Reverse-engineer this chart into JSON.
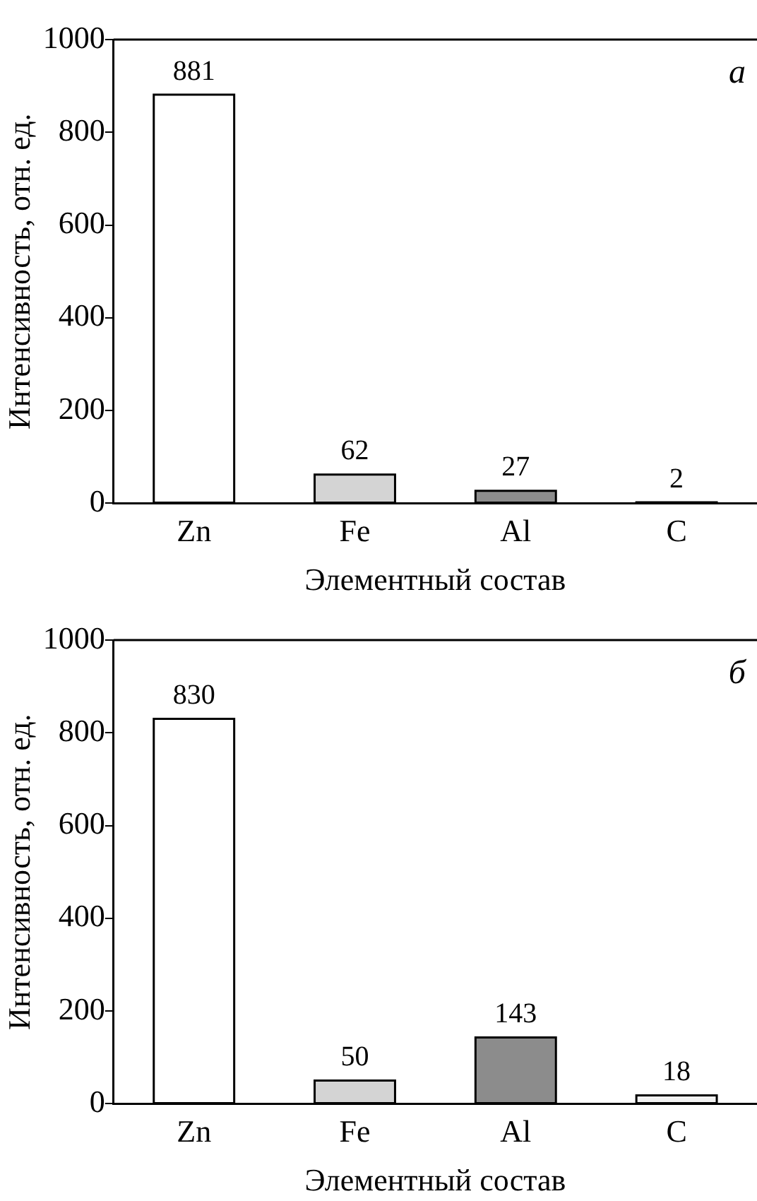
{
  "chart_data": [
    {
      "type": "bar",
      "categories": [
        "Zn",
        "Fe",
        "Al",
        "C"
      ],
      "values": [
        881,
        62,
        27,
        2
      ],
      "colors": [
        "#ffffff",
        "#d4d4d4",
        "#8c8c8c",
        "#f2f2f2"
      ],
      "xlabel": "Элементный состав",
      "ylabel": "Интенсивность, отн. ед.",
      "ylim": [
        0,
        1000
      ],
      "yticks": [
        0,
        200,
        400,
        600,
        800,
        1000
      ],
      "data_labels": true,
      "grid": false,
      "annotations": [
        "a"
      ]
    },
    {
      "type": "bar",
      "categories": [
        "Zn",
        "Fe",
        "Al",
        "C"
      ],
      "values": [
        830,
        50,
        143,
        18
      ],
      "colors": [
        "#ffffff",
        "#d4d4d4",
        "#8c8c8c",
        "#f2f2f2"
      ],
      "xlabel": "Элементный состав",
      "ylabel": "Интенсивность, отн. ед.",
      "ylim": [
        0,
        1000
      ],
      "yticks": [
        0,
        200,
        400,
        600,
        800,
        1000
      ],
      "data_labels": true,
      "grid": false,
      "annotations": [
        "б"
      ]
    }
  ]
}
